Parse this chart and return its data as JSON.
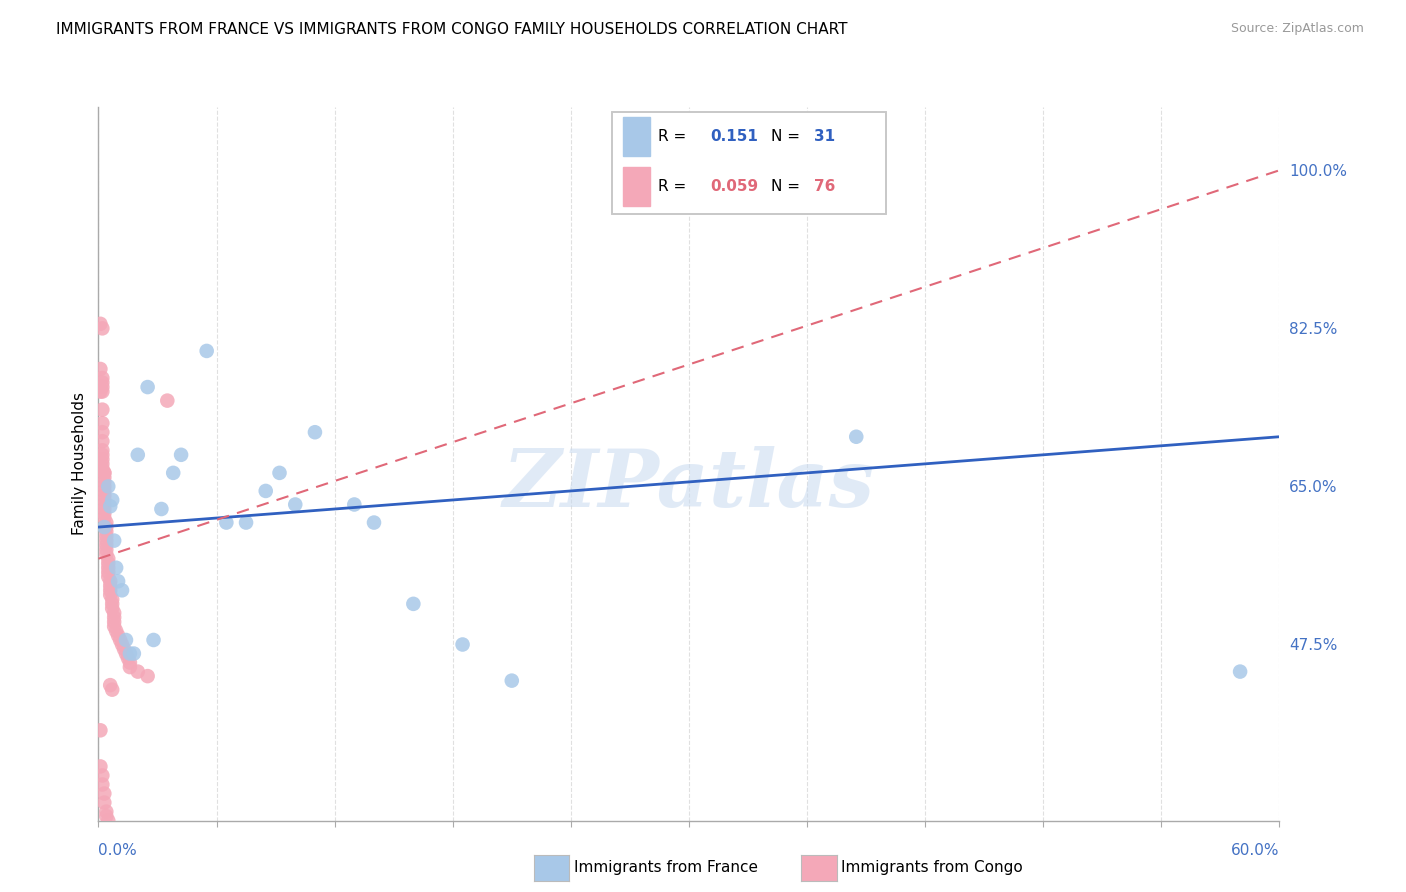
{
  "title": "IMMIGRANTS FROM FRANCE VS IMMIGRANTS FROM CONGO FAMILY HOUSEHOLDS CORRELATION CHART",
  "source": "Source: ZipAtlas.com",
  "ylabel": "Family Households",
  "yticks": [
    47.5,
    65.0,
    82.5,
    100.0
  ],
  "ytick_labels": [
    "47.5%",
    "65.0%",
    "82.5%",
    "100.0%"
  ],
  "xmin": 0.0,
  "xmax": 0.6,
  "ymin": 28.0,
  "ymax": 107.0,
  "france_R": "0.151",
  "france_N": "31",
  "congo_R": "0.059",
  "congo_N": "76",
  "france_color": "#a8c8e8",
  "congo_color": "#f4a8b8",
  "france_line_color": "#3060c0",
  "congo_line_color": "#e06878",
  "watermark": "ZIPatlas",
  "france_x": [
    0.003,
    0.005,
    0.006,
    0.007,
    0.008,
    0.009,
    0.01,
    0.012,
    0.014,
    0.016,
    0.018,
    0.02,
    0.025,
    0.028,
    0.032,
    0.038,
    0.042,
    0.055,
    0.065,
    0.075,
    0.085,
    0.092,
    0.1,
    0.11,
    0.13,
    0.14,
    0.16,
    0.185,
    0.21,
    0.385,
    0.58
  ],
  "france_y": [
    60.5,
    65.0,
    62.8,
    63.5,
    59.0,
    56.0,
    54.5,
    53.5,
    48.0,
    46.5,
    46.5,
    68.5,
    76.0,
    48.0,
    62.5,
    66.5,
    68.5,
    80.0,
    61.0,
    61.0,
    64.5,
    66.5,
    63.0,
    71.0,
    63.0,
    61.0,
    52.0,
    47.5,
    43.5,
    70.5,
    44.5
  ],
  "congo_x": [
    0.001,
    0.001,
    0.001,
    0.002,
    0.002,
    0.002,
    0.002,
    0.002,
    0.002,
    0.002,
    0.002,
    0.002,
    0.002,
    0.002,
    0.002,
    0.002,
    0.002,
    0.003,
    0.003,
    0.003,
    0.003,
    0.003,
    0.003,
    0.003,
    0.003,
    0.003,
    0.003,
    0.003,
    0.003,
    0.004,
    0.004,
    0.004,
    0.004,
    0.004,
    0.004,
    0.004,
    0.004,
    0.005,
    0.005,
    0.005,
    0.005,
    0.005,
    0.006,
    0.006,
    0.006,
    0.006,
    0.007,
    0.007,
    0.007,
    0.008,
    0.008,
    0.008,
    0.008,
    0.009,
    0.01,
    0.011,
    0.012,
    0.013,
    0.014,
    0.015,
    0.016,
    0.016,
    0.02,
    0.025,
    0.035,
    0.001,
    0.001,
    0.002,
    0.002,
    0.003,
    0.003,
    0.004,
    0.004,
    0.005,
    0.006,
    0.007
  ],
  "congo_y": [
    83.0,
    78.0,
    75.5,
    82.5,
    77.0,
    76.5,
    76.0,
    75.5,
    73.5,
    72.0,
    71.0,
    70.0,
    69.0,
    68.5,
    68.0,
    67.5,
    67.0,
    66.5,
    66.5,
    66.0,
    65.5,
    65.0,
    64.5,
    64.0,
    63.5,
    63.0,
    62.5,
    62.0,
    61.5,
    61.0,
    60.5,
    60.0,
    59.5,
    59.0,
    58.5,
    58.0,
    57.5,
    57.0,
    56.5,
    56.0,
    55.5,
    55.0,
    54.5,
    54.0,
    53.5,
    53.0,
    52.5,
    52.0,
    51.5,
    51.0,
    50.5,
    50.0,
    49.5,
    49.0,
    48.5,
    48.0,
    47.5,
    47.0,
    46.5,
    46.0,
    45.5,
    45.0,
    44.5,
    44.0,
    74.5,
    38.0,
    34.0,
    33.0,
    32.0,
    31.0,
    30.0,
    29.0,
    28.5,
    28.0,
    43.0,
    42.5
  ],
  "france_line_x": [
    0.0,
    0.6
  ],
  "france_line_y": [
    60.5,
    70.5
  ],
  "congo_line_x": [
    0.0,
    0.6
  ],
  "congo_line_y": [
    57.0,
    100.0
  ]
}
